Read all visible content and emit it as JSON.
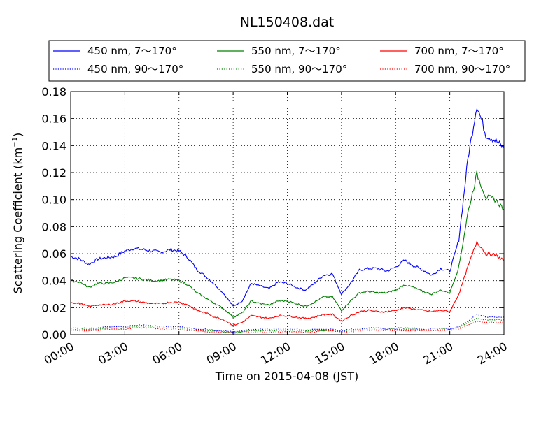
{
  "chart_data": {
    "type": "line",
    "title": "NL150408.dat",
    "xlabel": "Time on 2015-04-08 (JST)",
    "ylabel_main": "Scattering Coefficient (km",
    "ylabel_sup": "−1",
    "ylabel_end": ")",
    "xlim": [
      0,
      24
    ],
    "ylim": [
      0,
      0.18
    ],
    "grid": true,
    "legend_position": "top",
    "x_ticks": [
      0,
      3,
      6,
      9,
      12,
      15,
      18,
      21,
      24
    ],
    "x_tick_labels": [
      "00:00",
      "03:00",
      "06:00",
      "09:00",
      "12:00",
      "15:00",
      "18:00",
      "21:00",
      "24:00"
    ],
    "y_ticks": [
      0,
      0.02,
      0.04,
      0.06,
      0.08,
      0.1,
      0.12,
      0.14,
      0.16,
      0.18
    ],
    "y_tick_labels": [
      "0.00",
      "0.02",
      "0.04",
      "0.06",
      "0.08",
      "0.10",
      "0.12",
      "0.14",
      "0.16",
      "0.18"
    ],
    "x": [
      0,
      0.5,
      1,
      1.5,
      2,
      2.5,
      3,
      3.5,
      4,
      4.5,
      5,
      5.5,
      6,
      6.5,
      7,
      7.5,
      8,
      8.5,
      9,
      9.5,
      10,
      10.5,
      11,
      11.5,
      12,
      12.5,
      13,
      13.5,
      14,
      14.5,
      15,
      15.5,
      16,
      16.5,
      17,
      17.5,
      18,
      18.5,
      19,
      19.5,
      20,
      20.5,
      21,
      21.5,
      22,
      22.5,
      23,
      23.5,
      24
    ],
    "series": [
      {
        "name": "450 nm, 7～170°",
        "color": "#0000ff",
        "style": "solid",
        "values": [
          0.058,
          0.056,
          0.052,
          0.056,
          0.057,
          0.058,
          0.062,
          0.064,
          0.063,
          0.062,
          0.061,
          0.063,
          0.062,
          0.057,
          0.048,
          0.043,
          0.037,
          0.03,
          0.021,
          0.025,
          0.038,
          0.036,
          0.034,
          0.039,
          0.038,
          0.035,
          0.033,
          0.038,
          0.044,
          0.045,
          0.03,
          0.038,
          0.048,
          0.049,
          0.049,
          0.047,
          0.05,
          0.055,
          0.051,
          0.048,
          0.044,
          0.049,
          0.047,
          0.07,
          0.13,
          0.17,
          0.148,
          0.144,
          0.138
        ]
      },
      {
        "name": "450 nm, 90～170°",
        "color": "#0000ff",
        "style": "dotted",
        "values": [
          0.005,
          0.005,
          0.005,
          0.005,
          0.006,
          0.006,
          0.006,
          0.007,
          0.007,
          0.007,
          0.006,
          0.006,
          0.006,
          0.005,
          0.004,
          0.004,
          0.003,
          0.003,
          0.002,
          0.003,
          0.004,
          0.004,
          0.004,
          0.004,
          0.004,
          0.004,
          0.003,
          0.004,
          0.004,
          0.004,
          0.003,
          0.004,
          0.004,
          0.005,
          0.005,
          0.004,
          0.005,
          0.005,
          0.005,
          0.004,
          0.004,
          0.005,
          0.004,
          0.006,
          0.01,
          0.015,
          0.013,
          0.013,
          0.013
        ]
      },
      {
        "name": "550 nm, 7～170°",
        "color": "#008000",
        "style": "solid",
        "values": [
          0.04,
          0.039,
          0.035,
          0.038,
          0.038,
          0.039,
          0.042,
          0.042,
          0.041,
          0.04,
          0.04,
          0.041,
          0.04,
          0.037,
          0.031,
          0.027,
          0.023,
          0.019,
          0.013,
          0.016,
          0.025,
          0.023,
          0.022,
          0.025,
          0.025,
          0.023,
          0.021,
          0.024,
          0.028,
          0.028,
          0.018,
          0.025,
          0.031,
          0.032,
          0.031,
          0.031,
          0.033,
          0.037,
          0.035,
          0.032,
          0.03,
          0.033,
          0.031,
          0.05,
          0.09,
          0.119,
          0.102,
          0.1,
          0.093
        ]
      },
      {
        "name": "550 nm, 90～170°",
        "color": "#008000",
        "style": "dotted",
        "values": [
          0.004,
          0.004,
          0.004,
          0.004,
          0.005,
          0.005,
          0.005,
          0.006,
          0.006,
          0.006,
          0.005,
          0.005,
          0.005,
          0.004,
          0.003,
          0.003,
          0.003,
          0.002,
          0.002,
          0.002,
          0.003,
          0.003,
          0.003,
          0.003,
          0.003,
          0.003,
          0.003,
          0.003,
          0.003,
          0.003,
          0.002,
          0.003,
          0.004,
          0.004,
          0.004,
          0.004,
          0.004,
          0.004,
          0.004,
          0.004,
          0.003,
          0.004,
          0.004,
          0.005,
          0.009,
          0.012,
          0.011,
          0.011,
          0.011
        ]
      },
      {
        "name": "700 nm, 7～170°",
        "color": "#ff0000",
        "style": "solid",
        "values": [
          0.024,
          0.023,
          0.021,
          0.022,
          0.022,
          0.023,
          0.025,
          0.025,
          0.024,
          0.023,
          0.023,
          0.024,
          0.024,
          0.022,
          0.018,
          0.016,
          0.013,
          0.011,
          0.007,
          0.009,
          0.014,
          0.013,
          0.012,
          0.014,
          0.014,
          0.013,
          0.012,
          0.013,
          0.015,
          0.015,
          0.01,
          0.014,
          0.017,
          0.018,
          0.017,
          0.017,
          0.018,
          0.02,
          0.019,
          0.018,
          0.017,
          0.018,
          0.017,
          0.03,
          0.05,
          0.069,
          0.06,
          0.059,
          0.055
        ]
      },
      {
        "name": "700 nm, 90～170°",
        "color": "#ff0000",
        "style": "dotted",
        "values": [
          0.003,
          0.003,
          0.003,
          0.003,
          0.004,
          0.004,
          0.004,
          0.005,
          0.005,
          0.005,
          0.004,
          0.004,
          0.004,
          0.003,
          0.003,
          0.002,
          0.002,
          0.002,
          0.001,
          0.002,
          0.002,
          0.002,
          0.002,
          0.002,
          0.002,
          0.002,
          0.002,
          0.002,
          0.003,
          0.003,
          0.002,
          0.002,
          0.003,
          0.003,
          0.003,
          0.003,
          0.003,
          0.003,
          0.003,
          0.003,
          0.003,
          0.003,
          0.003,
          0.004,
          0.007,
          0.01,
          0.009,
          0.009,
          0.009
        ]
      }
    ]
  }
}
